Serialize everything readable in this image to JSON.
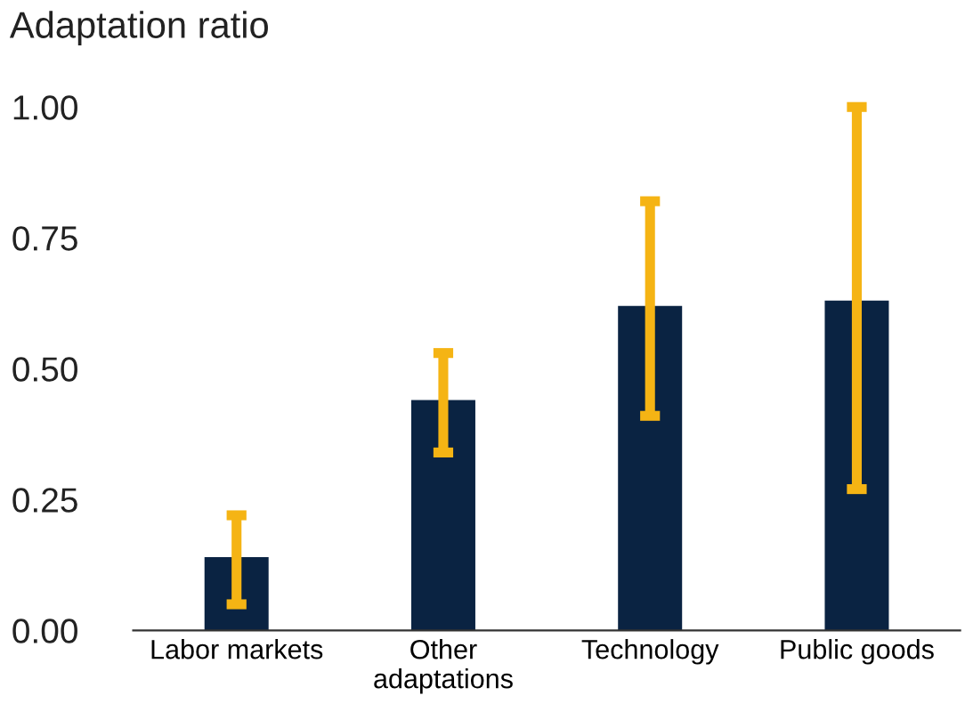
{
  "chart_data": {
    "type": "bar",
    "title": "Adaptation ratio",
    "categories": [
      "Labor markets",
      "Other\nadaptations",
      "Technology",
      "Public goods"
    ],
    "values": [
      0.14,
      0.44,
      0.62,
      0.63
    ],
    "errors": [
      [
        0.05,
        0.22
      ],
      [
        0.34,
        0.53
      ],
      [
        0.41,
        0.82
      ],
      [
        0.27,
        1.0
      ]
    ],
    "color": "#0a2342",
    "ylim": [
      0,
      1.0
    ],
    "yticks": [
      {
        "value": 0,
        "label": "0.00"
      },
      {
        "value": 0.25,
        "label": "0.25"
      },
      {
        "value": 0.5,
        "label": "0.50"
      },
      {
        "value": 0.75,
        "label": "0.75"
      },
      {
        "value": 1.0,
        "label": "1.00"
      }
    ],
    "grid": false,
    "legend": false
  }
}
